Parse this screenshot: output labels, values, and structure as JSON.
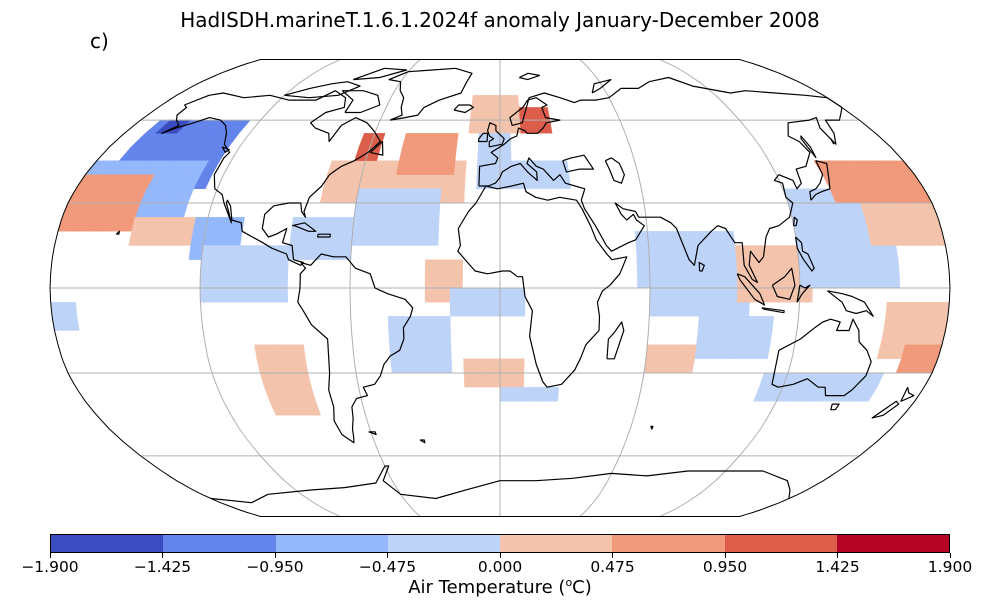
{
  "title": "HadISDH.marineT.1.6.1.2024f anomaly January-December 2008",
  "panel_label": "c)",
  "colorbar": {
    "label_prefix": "Air Temperature (",
    "label_sup": "o",
    "label_suffix": "C)",
    "ticks": [
      "−1.900",
      "−1.425",
      "−0.950",
      "−0.475",
      "0.000",
      "0.475",
      "0.950",
      "1.425",
      "1.900"
    ],
    "colors": [
      "#3b4cc0",
      "#6384eb",
      "#95b8fc",
      "#bdd3f8",
      "#f4c3ab",
      "#f19a7b",
      "#dc5d4a",
      "#b40426"
    ]
  },
  "map": {
    "projection": "Robinson",
    "graticule": true,
    "grid_cells": {
      "lon_step": 5,
      "lat_step": 5,
      "legend_classes": [
        "strong-cold",
        "cold",
        "mild-cold",
        "slight-cold",
        "slight-warm",
        "mild-warm",
        "warm",
        "strong-warm"
      ],
      "regions": [
        {
          "cls": 1,
          "lon": [
            -170,
            -125
          ],
          "lat": [
            35,
            60
          ]
        },
        {
          "cls": 0,
          "lon": [
            -165,
            -155
          ],
          "lat": [
            55,
            60
          ]
        },
        {
          "cls": 2,
          "lon": [
            -180,
            -130
          ],
          "lat": [
            25,
            45
          ]
        },
        {
          "cls": 5,
          "lon": [
            -180,
            -150
          ],
          "lat": [
            20,
            40
          ]
        },
        {
          "cls": 4,
          "lon": [
            -150,
            -120
          ],
          "lat": [
            15,
            25
          ]
        },
        {
          "cls": 2,
          "lon": [
            -125,
            -105
          ],
          "lat": [
            10,
            25
          ]
        },
        {
          "cls": 3,
          "lon": [
            -120,
            -85
          ],
          "lat": [
            -5,
            15
          ]
        },
        {
          "cls": 4,
          "lon": [
            -75,
            -15
          ],
          "lat": [
            30,
            45
          ]
        },
        {
          "cls": 5,
          "lon": [
            -45,
            -20
          ],
          "lat": [
            40,
            55
          ]
        },
        {
          "cls": 6,
          "lon": [
            -65,
            -55
          ],
          "lat": [
            45,
            55
          ]
        },
        {
          "cls": 3,
          "lon": [
            -60,
            -25
          ],
          "lat": [
            15,
            35
          ]
        },
        {
          "cls": 3,
          "lon": [
            -85,
            -60
          ],
          "lat": [
            10,
            25
          ]
        },
        {
          "cls": 4,
          "lon": [
            -30,
            -15
          ],
          "lat": [
            -5,
            10
          ]
        },
        {
          "cls": 4,
          "lon": [
            -15,
            10
          ],
          "lat": [
            55,
            70
          ]
        },
        {
          "cls": 6,
          "lon": [
            10,
            25
          ],
          "lat": [
            55,
            62
          ]
        },
        {
          "cls": 3,
          "lon": [
            -10,
            5
          ],
          "lat": [
            45,
            55
          ]
        },
        {
          "cls": 3,
          "lon": [
            -10,
            30
          ],
          "lat": [
            35,
            42
          ]
        },
        {
          "cls": 3,
          "lon": [
            -20,
            10
          ],
          "lat": [
            -10,
            0
          ]
        },
        {
          "cls": 3,
          "lon": [
            -45,
            -20
          ],
          "lat": [
            -30,
            -10
          ]
        },
        {
          "cls": 4,
          "lon": [
            -15,
            10
          ],
          "lat": [
            -35,
            -25
          ]
        },
        {
          "cls": 3,
          "lon": [
            0,
            25
          ],
          "lat": [
            -40,
            -35
          ]
        },
        {
          "cls": 3,
          "lon": [
            55,
            95
          ],
          "lat": [
            0,
            20
          ]
        },
        {
          "cls": 3,
          "lon": [
            60,
            100
          ],
          "lat": [
            -10,
            0
          ]
        },
        {
          "cls": 4,
          "lon": [
            95,
            125
          ],
          "lat": [
            -5,
            15
          ]
        },
        {
          "cls": 3,
          "lon": [
            120,
            160
          ],
          "lat": [
            0,
            35
          ]
        },
        {
          "cls": 5,
          "lon": [
            140,
            180
          ],
          "lat": [
            30,
            45
          ]
        },
        {
          "cls": 4,
          "lon": [
            150,
            180
          ],
          "lat": [
            15,
            30
          ]
        },
        {
          "cls": 4,
          "lon": [
            155,
            180
          ],
          "lat": [
            -25,
            -5
          ]
        },
        {
          "cls": 5,
          "lon": [
            165,
            180
          ],
          "lat": [
            -30,
            -20
          ]
        },
        {
          "cls": 3,
          "lon": [
            110,
            160
          ],
          "lat": [
            -40,
            -30
          ]
        },
        {
          "cls": 3,
          "lon": [
            80,
            110
          ],
          "lat": [
            -25,
            -10
          ]
        },
        {
          "cls": 4,
          "lon": [
            60,
            80
          ],
          "lat": [
            -30,
            -20
          ]
        },
        {
          "cls": 4,
          "lon": [
            -100,
            -80
          ],
          "lat": [
            -45,
            -20
          ]
        },
        {
          "cls": 3,
          "lon": [
            -180,
            -170
          ],
          "lat": [
            -15,
            -5
          ]
        }
      ]
    }
  }
}
